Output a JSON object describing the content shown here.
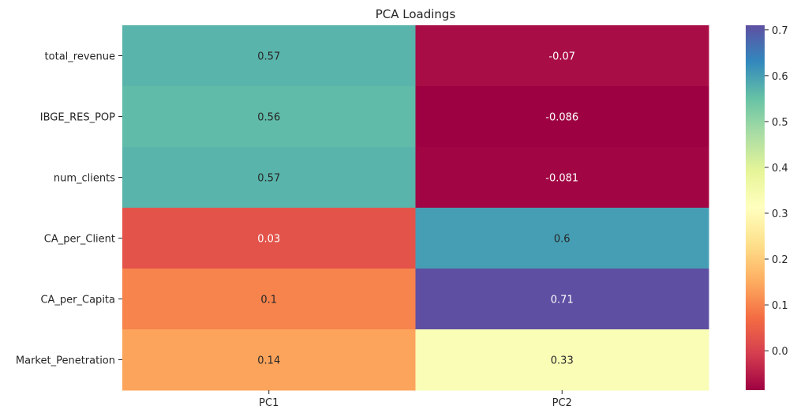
{
  "chart_data": {
    "type": "heatmap",
    "title": "PCA Loadings",
    "xlabel": "",
    "ylabel": "",
    "columns": [
      "PC1",
      "PC2"
    ],
    "rows": [
      "total_revenue",
      "IBGE_RES_POP",
      "num_clients",
      "CA_per_Client",
      "CA_per_Capita",
      "Market_Penetration"
    ],
    "values": [
      [
        0.57,
        -0.07
      ],
      [
        0.56,
        -0.086
      ],
      [
        0.57,
        -0.081
      ],
      [
        0.03,
        0.6
      ],
      [
        0.1,
        0.71
      ],
      [
        0.14,
        0.33
      ]
    ],
    "annotations": [
      [
        "0.57",
        "-0.07"
      ],
      [
        "0.56",
        "-0.086"
      ],
      [
        "0.57",
        "-0.081"
      ],
      [
        "0.03",
        "0.6"
      ],
      [
        "0.1",
        "0.71"
      ],
      [
        "0.14",
        "0.33"
      ]
    ],
    "colormap": "Spectral",
    "vmin": -0.086,
    "vmax": 0.71,
    "colorbar_ticks": [
      "0.7",
      "0.6",
      "0.5",
      "0.4",
      "0.3",
      "0.2",
      "0.1",
      "0.0"
    ],
    "colorbar_tick_values": [
      0.7,
      0.6,
      0.5,
      0.4,
      0.3,
      0.2,
      0.1,
      0.0
    ],
    "grid": false,
    "legend": "colorbar-right"
  }
}
